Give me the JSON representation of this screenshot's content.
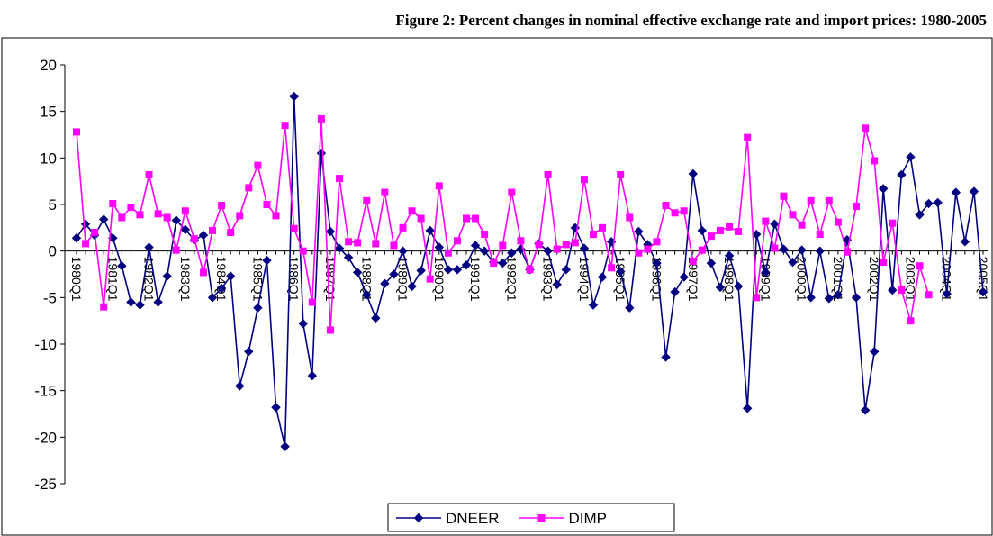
{
  "chart_data": {
    "type": "line",
    "title": "Figure 2: Percent changes in nominal effective exchange rate and import prices: 1980-2005",
    "categories": [
      "1980Q1",
      null,
      null,
      null,
      "1981Q1",
      null,
      null,
      null,
      "1982Q1",
      null,
      null,
      null,
      "1983Q1",
      null,
      null,
      null,
      "1984Q1",
      null,
      null,
      null,
      "1985Q1",
      null,
      null,
      null,
      "1986Q1",
      null,
      null,
      null,
      "1987Q1",
      null,
      null,
      null,
      "1988Q1",
      null,
      null,
      null,
      "1989Q1",
      null,
      null,
      null,
      "1990Q1",
      null,
      null,
      null,
      "1991Q1",
      null,
      null,
      null,
      "1992Q1",
      null,
      null,
      null,
      "1993Q1",
      null,
      null,
      null,
      "1994Q1",
      null,
      null,
      null,
      "1995Q1",
      null,
      null,
      null,
      "1996Q1",
      null,
      null,
      null,
      "1997Q1",
      null,
      null,
      null,
      "1998Q1",
      null,
      null,
      null,
      "1999Q1",
      null,
      null,
      null,
      "2000Q1",
      null,
      null,
      null,
      "2001Q1",
      null,
      null,
      null,
      "2002Q1",
      null,
      null,
      null,
      "2003Q1",
      null,
      null,
      null,
      "2004Q1",
      null,
      null,
      null,
      "2005Q1"
    ],
    "series": [
      {
        "name": "DNEER",
        "color": "#000080",
        "marker": "diamond",
        "values": [
          1.4,
          2.9,
          1.7,
          3.4,
          1.4,
          -1.6,
          -5.5,
          -5.8,
          0.4,
          -5.5,
          -2.7,
          3.3,
          2.3,
          1.2,
          1.7,
          -5.0,
          -4.0,
          -2.7,
          -14.5,
          -10.8,
          -6.1,
          -1.0,
          -16.8,
          -21.0,
          16.6,
          -7.8,
          -13.4,
          10.5,
          2.1,
          0.3,
          -0.7,
          -2.3,
          -4.7,
          -7.2,
          -3.5,
          -2.5,
          0.0,
          -3.8,
          -2.1,
          2.2,
          0.4,
          -2.0,
          -2.0,
          -1.5,
          0.6,
          0.0,
          -1.2,
          -1.3,
          -0.2,
          0.2,
          -2.0,
          0.8,
          0.0,
          -3.6,
          -2.0,
          2.5,
          0.3,
          -5.8,
          -2.8,
          1.0,
          -2.2,
          -6.1,
          2.1,
          0.7,
          -1.3,
          -11.4,
          -4.4,
          -2.8,
          8.3,
          2.2,
          -1.3,
          -3.9,
          -0.5,
          -3.8,
          -16.9,
          1.8,
          -2.3,
          2.9,
          0.2,
          -1.2,
          0.1,
          -5.0,
          0.0,
          -5.1,
          -4.7,
          1.2,
          -5.0,
          -17.1,
          -10.8,
          6.7,
          -4.2,
          8.2,
          10.1,
          3.9,
          5.1,
          5.2,
          -4.6,
          6.3,
          1.0,
          6.4,
          -4.4
        ]
      },
      {
        "name": "DIMP",
        "color": "#ff00ff",
        "marker": "square",
        "values": [
          12.8,
          0.8,
          2.0,
          -6.0,
          5.1,
          3.6,
          4.7,
          3.9,
          8.2,
          4.0,
          3.6,
          0.1,
          4.3,
          1.3,
          -2.3,
          2.2,
          4.9,
          2.0,
          3.8,
          6.8,
          9.2,
          5.0,
          3.8,
          13.5,
          2.4,
          0.0,
          -5.5,
          14.2,
          -8.5,
          7.8,
          1.0,
          0.9,
          5.4,
          0.8,
          6.3,
          0.6,
          2.5,
          4.3,
          3.5,
          -3.0,
          7.0,
          -0.2,
          1.1,
          3.5,
          3.5,
          1.8,
          -1.3,
          0.6,
          6.3,
          1.1,
          -2.0,
          0.7,
          8.2,
          0.2,
          0.7,
          0.9,
          7.7,
          1.8,
          2.5,
          -1.8,
          8.2,
          3.6,
          -0.2,
          0.2,
          1.0,
          4.9,
          4.1,
          4.3,
          -1.1,
          0.1,
          1.6,
          2.2,
          2.6,
          2.1,
          12.2,
          -5.0,
          3.2,
          0.3,
          5.9,
          3.9,
          2.8,
          5.4,
          1.8,
          5.4,
          3.1,
          -0.1,
          4.8,
          13.2,
          9.7,
          -1.2,
          3.0,
          -4.2,
          -7.5,
          -1.6,
          -4.7,
          null,
          null,
          null,
          null,
          null,
          null
        ]
      }
    ],
    "ylim": [
      -25,
      20
    ],
    "yticks": [
      -25,
      -20,
      -15,
      -10,
      -5,
      0,
      5,
      10,
      15,
      20
    ],
    "grid": false,
    "legend": "bottom"
  }
}
